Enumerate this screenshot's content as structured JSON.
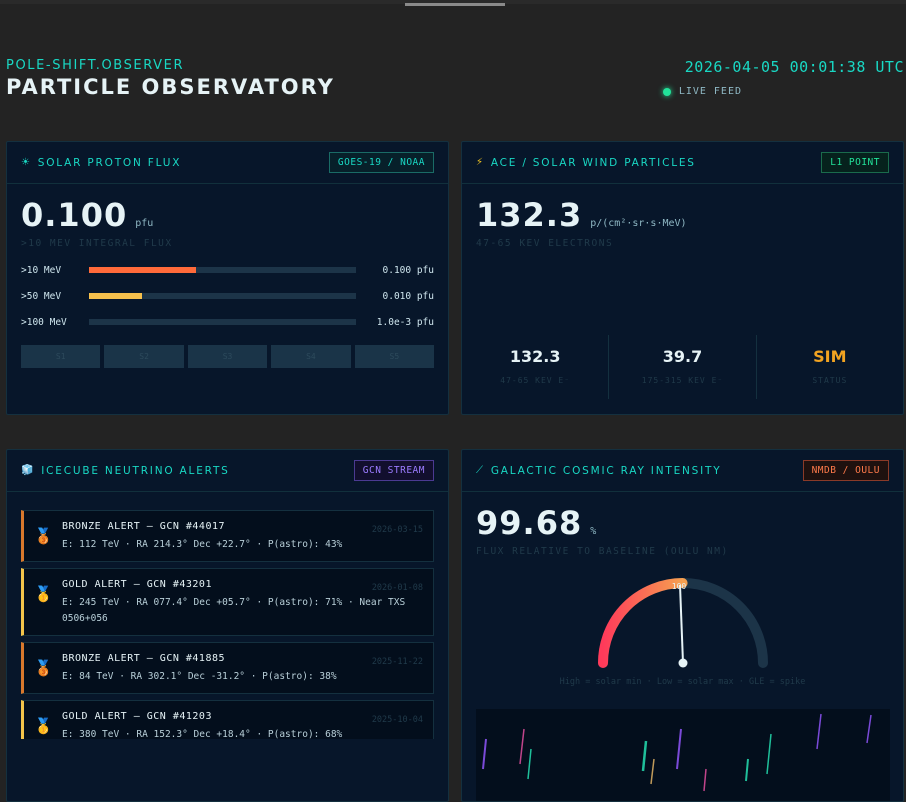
{
  "header": {
    "brand": "POLE-SHIFT.OBSERVER",
    "title": "PARTICLE OBSERVATORY",
    "clock": "2026-04-05 00:01:38 UTC",
    "live_label": "LIVE FEED"
  },
  "proton": {
    "title": "SOLAR PROTON FLUX",
    "tag": "GOES-19 / NOAA",
    "value": "0.100",
    "unit": "pfu",
    "subtitle": ">10 MEV INTEGRAL FLUX",
    "bars": [
      {
        "label": ">10 MeV",
        "value": "0.100 pfu",
        "fraction": 0.4,
        "color": "#ff6a3a"
      },
      {
        "label": ">50 MeV",
        "value": "0.010 pfu",
        "fraction": 0.2,
        "color": "#f6c04c"
      },
      {
        "label": ">100 MeV",
        "value": "1.0e-3 pfu",
        "fraction": 0.0,
        "color": "#19d8c4"
      }
    ],
    "scale": [
      "S1",
      "S2",
      "S3",
      "S4",
      "S5"
    ]
  },
  "ace": {
    "title": "ACE / SOLAR WIND PARTICLES",
    "tag": "L1 POINT",
    "value": "132.3",
    "unit": "p/(cm²·sr·s·MeV)",
    "subtitle": "47-65 KEV ELECTRONS",
    "stats": [
      {
        "num": "132.3",
        "cap": "47-65 KEV E⁻"
      },
      {
        "num": "39.7",
        "cap": "175-315 KEV E⁻"
      },
      {
        "num": "SIM",
        "cap": "STATUS"
      }
    ]
  },
  "icecube": {
    "title": "ICECUBE NEUTRINO ALERTS",
    "tag": "GCN STREAM",
    "alerts": [
      {
        "kind": "bronze",
        "title": "BRONZE ALERT — GCN #44017",
        "detail": "E: 112 TeV · RA 214.3° Dec +22.7° · P(astro): 43%",
        "date": "2026-03-15"
      },
      {
        "kind": "gold",
        "title": "GOLD ALERT — GCN #43201",
        "detail": "E: 245 TeV · RA 077.4° Dec +05.7° · P(astro): 71% · Near TXS 0506+056",
        "date": "2026-01-08"
      },
      {
        "kind": "bronze",
        "title": "BRONZE ALERT — GCN #41885",
        "detail": "E: 84 TeV · RA 302.1° Dec -31.2° · P(astro): 38%",
        "date": "2025-11-22"
      },
      {
        "kind": "gold",
        "title": "GOLD ALERT — GCN #41203",
        "detail": "E: 380 TeV · RA 152.3° Dec +18.4° · P(astro): 68%",
        "date": "2025-10-04"
      }
    ]
  },
  "cosmic": {
    "title": "GALACTIC COSMIC RAY INTENSITY",
    "tag": "NMDB / OULU",
    "value": "99.68",
    "unit": "%",
    "subtitle": "FLUX RELATIVE TO BASELINE (OULU NM)",
    "gauge_fraction": 0.4984,
    "gauge_label": "100",
    "caption": "High = solar min · Low = solar max · GLE = spike"
  },
  "colors": {
    "accent": "#19d8c4",
    "panel_bg": "#07162a",
    "page_bg": "#232323"
  }
}
